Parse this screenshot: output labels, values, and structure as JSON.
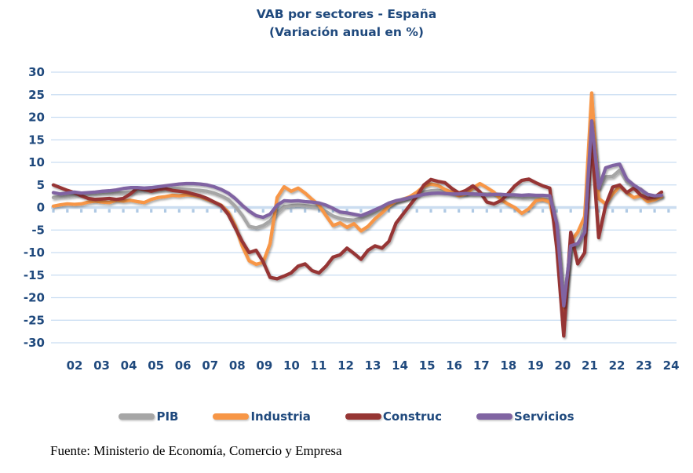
{
  "title": {
    "line1": "VAB por sectores - España",
    "line2": "(Variación anual en %)"
  },
  "footer": {
    "source": "Fuente: Ministerio de Economía, Comercio y Empresa"
  },
  "style_colors": {
    "text_blue": "#1F497D",
    "gridline": "#C9DDF2",
    "zero_axis": "#CBDDF0",
    "zero_tick": "#AFC9E4"
  },
  "chart_data": {
    "type": "line",
    "title": "VAB por sectores - España",
    "subtitle": "(Variación anual en %)",
    "x_frequency": "quarterly",
    "x_range": [
      "2002Q1",
      "2023Q4"
    ],
    "x_labels": [
      "02",
      "03",
      "04",
      "05",
      "06",
      "07",
      "08",
      "09",
      "10",
      "11",
      "12",
      "13",
      "14",
      "15",
      "16",
      "17",
      "18",
      "19",
      "20",
      "21",
      "22",
      "23",
      "24"
    ],
    "ylabel": "",
    "xlabel": "",
    "ylim": [
      -30,
      30
    ],
    "ytick_step": 5,
    "grid": "horizontal",
    "legend_position": "bottom",
    "series": [
      {
        "name": "PIB",
        "color": "#A6A6A6",
        "values": [
          2.2,
          2.4,
          2.5,
          2.7,
          2.9,
          3.0,
          3.1,
          3.2,
          3.2,
          3.3,
          3.2,
          3.3,
          3.5,
          3.7,
          3.8,
          3.9,
          4.0,
          4.1,
          4.1,
          4.0,
          3.9,
          3.8,
          3.6,
          3.2,
          2.6,
          1.8,
          0.3,
          -1.7,
          -4.2,
          -4.5,
          -4.0,
          -3.0,
          -1.2,
          0.2,
          0.4,
          0.5,
          0.4,
          0.2,
          0.0,
          -0.9,
          -1.9,
          -2.4,
          -2.7,
          -2.8,
          -2.4,
          -1.8,
          -1.0,
          0.0,
          0.6,
          1.3,
          1.9,
          2.3,
          2.9,
          3.4,
          3.7,
          3.8,
          3.6,
          3.4,
          3.2,
          3.0,
          3.0,
          3.1,
          3.0,
          3.0,
          2.9,
          2.6,
          2.4,
          2.2,
          2.2,
          2.1,
          1.9,
          1.7,
          -4.3,
          -21.6,
          -8.6,
          -8.8,
          -4.3,
          17.8,
          4.2,
          6.8,
          6.9,
          8.3,
          5.7,
          4.6,
          4.1,
          2.3,
          2.1,
          2.6
        ]
      },
      {
        "name": "Industria",
        "color": "#F79646",
        "values": [
          0.3,
          0.6,
          0.8,
          0.7,
          0.8,
          1.2,
          1.4,
          1.2,
          1.1,
          1.6,
          1.4,
          1.6,
          1.3,
          1.1,
          1.8,
          2.2,
          2.4,
          2.7,
          2.6,
          2.8,
          2.7,
          2.4,
          1.8,
          1.2,
          0.5,
          -1.0,
          -4.0,
          -8.5,
          -11.8,
          -12.6,
          -12.2,
          -8.0,
          2.2,
          4.6,
          3.6,
          4.3,
          3.2,
          1.8,
          0.5,
          -1.8,
          -4.0,
          -3.4,
          -4.4,
          -3.6,
          -5.2,
          -4.2,
          -2.5,
          -1.2,
          0.3,
          1.4,
          1.8,
          2.4,
          3.4,
          4.7,
          5.2,
          4.9,
          4.0,
          3.3,
          2.6,
          3.0,
          4.3,
          5.3,
          4.4,
          3.4,
          1.8,
          0.8,
          0.0,
          -1.3,
          -0.3,
          1.5,
          1.8,
          1.2,
          -6.0,
          -24.5,
          -7.5,
          -5.5,
          -2.0,
          25.4,
          2.0,
          0.8,
          3.0,
          4.7,
          3.3,
          2.2,
          2.6,
          1.3,
          1.7,
          2.4
        ]
      },
      {
        "name": "Construc",
        "color": "#963634",
        "values": [
          5.0,
          4.4,
          3.8,
          3.3,
          2.6,
          2.0,
          1.8,
          1.9,
          2.0,
          1.8,
          2.0,
          3.0,
          4.3,
          4.0,
          3.6,
          4.0,
          4.2,
          3.8,
          3.6,
          3.4,
          3.0,
          2.6,
          2.0,
          1.2,
          0.4,
          -1.5,
          -4.5,
          -7.5,
          -10.0,
          -9.5,
          -12.0,
          -15.5,
          -15.8,
          -15.2,
          -14.5,
          -13.0,
          -12.5,
          -14.0,
          -14.5,
          -13.0,
          -11.0,
          -10.5,
          -9.0,
          -10.2,
          -11.5,
          -9.5,
          -8.5,
          -9.0,
          -7.5,
          -3.5,
          -1.5,
          0.5,
          2.5,
          5.0,
          6.2,
          5.8,
          5.5,
          4.2,
          3.2,
          3.8,
          4.8,
          3.5,
          1.2,
          0.8,
          1.5,
          3.0,
          4.8,
          6.0,
          6.3,
          5.5,
          4.8,
          4.3,
          -9.0,
          -28.5,
          -5.5,
          -12.5,
          -10.0,
          15.0,
          -6.7,
          0.5,
          4.5,
          5.0,
          3.3,
          4.3,
          2.8,
          2.0,
          2.3,
          3.4
        ]
      },
      {
        "name": "Servicios",
        "color": "#8064A2",
        "values": [
          3.3,
          3.0,
          3.2,
          3.4,
          3.2,
          3.3,
          3.4,
          3.6,
          3.7,
          3.9,
          4.2,
          4.4,
          4.4,
          4.3,
          4.4,
          4.6,
          4.8,
          5.0,
          5.2,
          5.3,
          5.3,
          5.2,
          5.0,
          4.6,
          4.0,
          3.2,
          2.0,
          0.5,
          -0.8,
          -1.8,
          -2.2,
          -1.5,
          0.5,
          1.5,
          1.4,
          1.5,
          1.3,
          1.2,
          1.0,
          0.5,
          -0.2,
          -1.0,
          -1.2,
          -1.5,
          -1.8,
          -1.2,
          -0.5,
          0.2,
          1.0,
          1.5,
          1.8,
          2.2,
          2.6,
          2.9,
          3.1,
          3.2,
          3.1,
          3.0,
          3.0,
          3.1,
          3.0,
          2.9,
          2.8,
          2.9,
          2.9,
          2.8,
          2.8,
          2.7,
          2.8,
          2.7,
          2.7,
          2.6,
          -3.5,
          -21.8,
          -8.5,
          -8.0,
          -5.5,
          19.2,
          4.3,
          8.8,
          9.3,
          9.6,
          6.3,
          5.0,
          4.0,
          2.9,
          2.6,
          2.7
        ]
      }
    ]
  }
}
